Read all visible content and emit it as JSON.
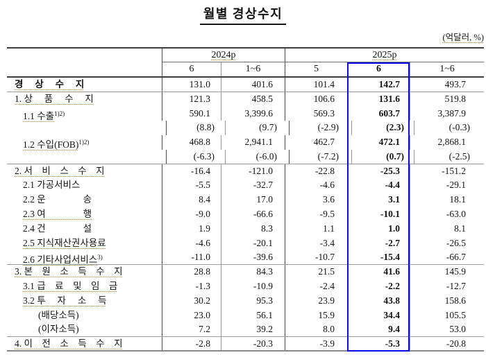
{
  "title": "월별 경상수지",
  "unit_label": "(억달러, %)",
  "colors": {
    "highlight_border": "#0a0aee",
    "spellcheck": "#dd7f2b"
  },
  "table": {
    "col_groups": [
      {
        "label": "2024p"
      },
      {
        "label": "2025p"
      }
    ],
    "sub_headers": [
      "6",
      "1~6",
      "5",
      "6",
      "1~6"
    ],
    "highlight_col": 3,
    "rows": [
      {
        "label": "경　 상　 수　 지",
        "sup": "",
        "indent": "l1",
        "bold": true,
        "chk": true,
        "paren": false,
        "section_end": true,
        "values": [
          "131.0",
          "401.6",
          "101.4",
          "142.7",
          "493.7"
        ]
      },
      {
        "label": "1. 상　 품　 수　 지",
        "sup": "",
        "indent": "l1",
        "bold": false,
        "chk": true,
        "paren": false,
        "section_end": false,
        "values": [
          "121.3",
          "458.5",
          "106.6",
          "131.6",
          "519.8"
        ]
      },
      {
        "label": "1.1 수출",
        "sup": "1)2)",
        "indent": "l2",
        "bold": false,
        "chk": true,
        "paren": false,
        "section_end": false,
        "values": [
          "590.1",
          "3,399.6",
          "569.3",
          "603.7",
          "3,387.9"
        ]
      },
      {
        "label": "",
        "sup": "",
        "indent": "l2",
        "bold": false,
        "chk": false,
        "paren": true,
        "section_end": false,
        "values": [
          "(8.8)",
          "(9.7)",
          "(-2.9)",
          "(2.3)",
          "(-0.3)"
        ]
      },
      {
        "label": "1.2 수입(FOB)",
        "sup": "1)2)",
        "indent": "l2",
        "bold": false,
        "chk": true,
        "paren": false,
        "section_end": false,
        "values": [
          "468.8",
          "2,941.1",
          "462.7",
          "472.1",
          "2,868.1"
        ]
      },
      {
        "label": "",
        "sup": "",
        "indent": "l2",
        "bold": false,
        "chk": false,
        "paren": true,
        "section_end": true,
        "values": [
          "(-6.3)",
          "(-6.0)",
          "(-7.2)",
          "(0.7)",
          "(-2.5)"
        ]
      },
      {
        "label": "2. 서　비　스　수　지",
        "sup": "",
        "indent": "l1",
        "bold": false,
        "chk": true,
        "paren": false,
        "section_end": false,
        "values": [
          "-16.4",
          "-121.0",
          "-22.8",
          "-25.3",
          "-151.2"
        ]
      },
      {
        "label": "2.1 가공서비스",
        "sup": "",
        "indent": "l2",
        "bold": false,
        "chk": false,
        "paren": false,
        "section_end": false,
        "values": [
          "-5.5",
          "-32.7",
          "-4.6",
          "-4.4",
          "-29.1"
        ]
      },
      {
        "label": "2.2 운　　　　송",
        "sup": "",
        "indent": "l2",
        "bold": false,
        "chk": false,
        "paren": false,
        "section_end": false,
        "values": [
          "8.4",
          "17.0",
          "3.6",
          "3.1",
          "18.1"
        ]
      },
      {
        "label": "2.3 여　　　　행",
        "sup": "",
        "indent": "l2",
        "bold": false,
        "chk": true,
        "paren": false,
        "section_end": false,
        "values": [
          "-9.0",
          "-66.6",
          "-9.5",
          "-10.1",
          "-63.0"
        ]
      },
      {
        "label": "2.4 건　　　　설",
        "sup": "",
        "indent": "l2",
        "bold": false,
        "chk": false,
        "paren": false,
        "section_end": false,
        "values": [
          "1.9",
          "8.3",
          "1.1",
          "1.0",
          "8.1"
        ]
      },
      {
        "label": "2.5 지식재산권사용료",
        "sup": "",
        "indent": "l2",
        "bold": false,
        "chk": true,
        "paren": false,
        "section_end": false,
        "values": [
          "-4.6",
          "-20.1",
          "-3.4",
          "-2.7",
          "-26.5"
        ]
      },
      {
        "label": "2.6 기타사업서비스",
        "sup": "3)",
        "indent": "l2",
        "bold": false,
        "chk": true,
        "paren": false,
        "section_end": true,
        "values": [
          "-11.0",
          "-39.6",
          "-10.7",
          "-15.4",
          "-66.7"
        ]
      },
      {
        "label": "3. 본　원　소　득　수　지",
        "sup": "",
        "indent": "l1",
        "bold": false,
        "chk": true,
        "paren": false,
        "section_end": false,
        "values": [
          "28.8",
          "84.3",
          "21.5",
          "41.6",
          "145.9"
        ]
      },
      {
        "label": "3.1 급　료　및　임　금",
        "sup": "",
        "indent": "l2",
        "bold": false,
        "chk": true,
        "paren": false,
        "section_end": false,
        "values": [
          "-1.3",
          "-10.9",
          "-2.4",
          "-2.2",
          "-12.7"
        ]
      },
      {
        "label": "3.2 투　 자　 소　 득",
        "sup": "",
        "indent": "l2",
        "bold": false,
        "chk": true,
        "paren": false,
        "section_end": false,
        "values": [
          "30.2",
          "95.3",
          "23.9",
          "43.8",
          "158.6"
        ]
      },
      {
        "label": "(배당소득)",
        "sup": "",
        "indent": "l3",
        "bold": false,
        "chk": false,
        "paren": false,
        "section_end": false,
        "values": [
          "23.0",
          "56.1",
          "15.9",
          "34.4",
          "105.5"
        ]
      },
      {
        "label": "(이자소득)",
        "sup": "",
        "indent": "l3",
        "bold": false,
        "chk": false,
        "paren": false,
        "section_end": true,
        "values": [
          "7.2",
          "39.2",
          "8.0",
          "9.4",
          "53.0"
        ]
      },
      {
        "label": "4. 이　전　소　득　수　지",
        "sup": "",
        "indent": "l1",
        "bold": false,
        "chk": true,
        "paren": false,
        "section_end": false,
        "values": [
          "-2.8",
          "-20.3",
          "-3.9",
          "-5.3",
          "-20.8"
        ]
      }
    ]
  }
}
